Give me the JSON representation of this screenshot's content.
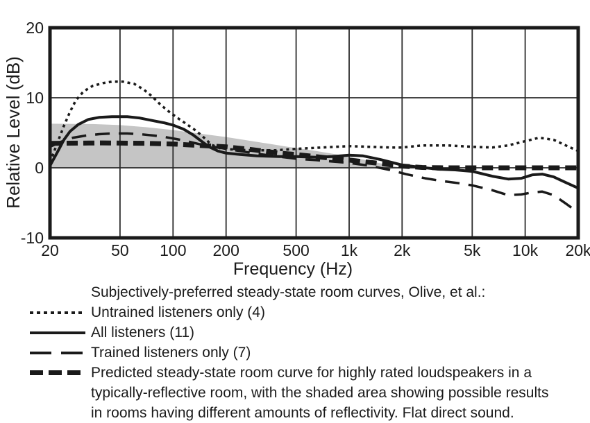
{
  "figure": {
    "background": "#ffffff",
    "ink": "#1a1a1a",
    "shaded_fill": "#c5c5c5",
    "gridline_color": "#2b2b2b"
  },
  "chart_data": {
    "type": "line",
    "x_axis": {
      "label": "Frequency (Hz)",
      "scale": "log",
      "min": 20,
      "max": 20000,
      "ticks": [
        {
          "f": 20,
          "label": "20"
        },
        {
          "f": 50,
          "label": "50"
        },
        {
          "f": 100,
          "label": "100"
        },
        {
          "f": 200,
          "label": "200"
        },
        {
          "f": 500,
          "label": "500"
        },
        {
          "f": 1000,
          "label": "1k"
        },
        {
          "f": 2000,
          "label": "2k"
        },
        {
          "f": 5000,
          "label": "5k"
        },
        {
          "f": 10000,
          "label": "10k"
        },
        {
          "f": 20000,
          "label": "20k"
        }
      ]
    },
    "y_axis": {
      "label": "Relative Level (dB)",
      "min": -10,
      "max": 20,
      "ticks": [
        {
          "v": 20,
          "label": "20"
        },
        {
          "v": 10,
          "label": "10"
        },
        {
          "v": 0,
          "label": "0"
        },
        {
          "v": -10,
          "label": "-10"
        }
      ],
      "gridlines": [
        10,
        0
      ]
    },
    "shaded_region": {
      "name": "possible results in rooms having different amounts of reflectivity",
      "fill": "#c5c5c5",
      "bottom_db": 0,
      "top_edge": [
        [
          20,
          6.3
        ],
        [
          35,
          6.25
        ],
        [
          50,
          6.1
        ],
        [
          70,
          5.8
        ],
        [
          100,
          5.4
        ],
        [
          140,
          4.9
        ],
        [
          200,
          4.4
        ],
        [
          300,
          3.7
        ],
        [
          450,
          3.0
        ],
        [
          650,
          2.4
        ],
        [
          900,
          1.8
        ],
        [
          1300,
          1.0
        ],
        [
          1800,
          0.2
        ],
        [
          2000,
          0
        ]
      ]
    },
    "series": [
      {
        "key": "untrained",
        "name": "Untrained listeners only (4)",
        "style": "dotted",
        "width": 3.5,
        "dash": "4 5",
        "points": [
          [
            20,
            0.8
          ],
          [
            22,
            3.5
          ],
          [
            24,
            6.0
          ],
          [
            26,
            8.0
          ],
          [
            28,
            9.6
          ],
          [
            31,
            10.9
          ],
          [
            35,
            11.7
          ],
          [
            40,
            12.1
          ],
          [
            45,
            12.3
          ],
          [
            52,
            12.3
          ],
          [
            60,
            12.0
          ],
          [
            68,
            11.2
          ],
          [
            76,
            10.2
          ],
          [
            85,
            9.0
          ],
          [
            95,
            8.0
          ],
          [
            105,
            7.2
          ],
          [
            120,
            6.2
          ],
          [
            135,
            5.3
          ],
          [
            150,
            4.3
          ],
          [
            165,
            3.3
          ],
          [
            185,
            2.8
          ],
          [
            220,
            2.6
          ],
          [
            280,
            2.5
          ],
          [
            380,
            2.5
          ],
          [
            500,
            2.7
          ],
          [
            700,
            2.9
          ],
          [
            1000,
            3.1
          ],
          [
            1300,
            3.0
          ],
          [
            1700,
            2.9
          ],
          [
            2000,
            2.9
          ],
          [
            2600,
            3.2
          ],
          [
            3600,
            3.2
          ],
          [
            5000,
            3.0
          ],
          [
            6500,
            2.9
          ],
          [
            8000,
            3.2
          ],
          [
            10000,
            3.8
          ],
          [
            12000,
            4.3
          ],
          [
            14500,
            4.0
          ],
          [
            17000,
            3.2
          ],
          [
            20000,
            2.4
          ]
        ]
      },
      {
        "key": "all",
        "name": "All listeners (11)",
        "style": "solid",
        "width": 4,
        "dash": "",
        "points": [
          [
            20,
            0.3
          ],
          [
            22,
            2.2
          ],
          [
            24,
            4.0
          ],
          [
            26,
            5.2
          ],
          [
            29,
            6.2
          ],
          [
            33,
            6.9
          ],
          [
            38,
            7.2
          ],
          [
            45,
            7.3
          ],
          [
            55,
            7.3
          ],
          [
            65,
            7.1
          ],
          [
            78,
            6.7
          ],
          [
            90,
            6.4
          ],
          [
            100,
            6.1
          ],
          [
            115,
            5.5
          ],
          [
            130,
            4.7
          ],
          [
            145,
            3.8
          ],
          [
            160,
            3.0
          ],
          [
            180,
            2.4
          ],
          [
            200,
            2.1
          ],
          [
            240,
            1.9
          ],
          [
            300,
            1.7
          ],
          [
            400,
            1.6
          ],
          [
            500,
            1.6
          ],
          [
            650,
            1.5
          ],
          [
            800,
            1.6
          ],
          [
            1000,
            1.8
          ],
          [
            1200,
            1.7
          ],
          [
            1500,
            1.2
          ],
          [
            2000,
            0.4
          ],
          [
            2500,
            0.1
          ],
          [
            3200,
            -0.2
          ],
          [
            4000,
            -0.3
          ],
          [
            5000,
            -0.5
          ],
          [
            6500,
            -1.2
          ],
          [
            8000,
            -1.6
          ],
          [
            9500,
            -1.5
          ],
          [
            11000,
            -1.0
          ],
          [
            12500,
            -0.9
          ],
          [
            14500,
            -1.3
          ],
          [
            17000,
            -2.1
          ],
          [
            20000,
            -2.9
          ]
        ]
      },
      {
        "key": "trained",
        "name": "Trained listeners only (7)",
        "style": "long-dash",
        "width": 3.5,
        "dash": "21 13",
        "points": [
          [
            20,
            3.0
          ],
          [
            23,
            3.7
          ],
          [
            27,
            4.3
          ],
          [
            32,
            4.6
          ],
          [
            38,
            4.8
          ],
          [
            45,
            4.9
          ],
          [
            55,
            4.9
          ],
          [
            65,
            4.8
          ],
          [
            78,
            4.6
          ],
          [
            90,
            4.4
          ],
          [
            105,
            4.1
          ],
          [
            120,
            3.8
          ],
          [
            140,
            3.4
          ],
          [
            160,
            3.1
          ],
          [
            190,
            2.8
          ],
          [
            240,
            2.4
          ],
          [
            300,
            2.0
          ],
          [
            400,
            1.6
          ],
          [
            500,
            1.3
          ],
          [
            650,
            1.1
          ],
          [
            800,
            0.9
          ],
          [
            1000,
            0.7
          ],
          [
            1300,
            0.3
          ],
          [
            1700,
            -0.3
          ],
          [
            2100,
            -0.9
          ],
          [
            2700,
            -1.5
          ],
          [
            3400,
            -1.9
          ],
          [
            4200,
            -2.2
          ],
          [
            5000,
            -2.5
          ],
          [
            6500,
            -3.2
          ],
          [
            8000,
            -3.9
          ],
          [
            9500,
            -3.8
          ],
          [
            11000,
            -3.5
          ],
          [
            12500,
            -3.4
          ],
          [
            14500,
            -3.9
          ],
          [
            17000,
            -5.1
          ],
          [
            20000,
            -6.4
          ]
        ]
      },
      {
        "key": "predicted",
        "name": "Predicted steady-state room curve",
        "style": "thick-dash",
        "width": 7,
        "dash": "16 8",
        "points": [
          [
            20,
            3.5
          ],
          [
            40,
            3.55
          ],
          [
            70,
            3.5
          ],
          [
            100,
            3.4
          ],
          [
            140,
            3.2
          ],
          [
            200,
            3.0
          ],
          [
            280,
            2.6
          ],
          [
            400,
            2.1
          ],
          [
            500,
            1.9
          ],
          [
            700,
            1.5
          ],
          [
            1000,
            1.1
          ],
          [
            1400,
            0.7
          ],
          [
            2000,
            0.25
          ],
          [
            2600,
            0.05
          ],
          [
            3500,
            0
          ],
          [
            6000,
            0
          ],
          [
            10000,
            0
          ],
          [
            20000,
            0
          ]
        ]
      }
    ]
  },
  "legend": {
    "title": "Subjectively-preferred steady-state room curves, Olive, et al.:",
    "items": [
      {
        "swatch": "dotted",
        "label": "Untrained listeners only (4)"
      },
      {
        "swatch": "solid",
        "label": "All listeners (11)"
      },
      {
        "swatch": "long-dash",
        "label": "Trained listeners only (7)"
      },
      {
        "swatch": "thick-dash",
        "label": "Predicted steady-state room curve for highly rated loudspeakers in a\ntypically-reflective room, with the shaded area showing possible results\nin rooms having different amounts of reflectivity.  Flat direct sound."
      }
    ]
  }
}
